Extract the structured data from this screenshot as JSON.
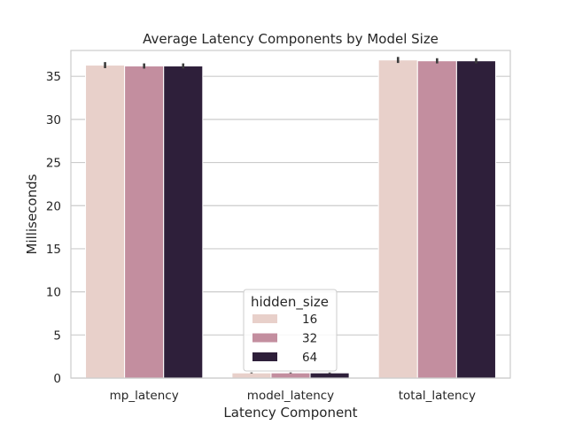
{
  "chart_data": {
    "type": "bar",
    "title": "Average Latency Components by Model Size",
    "xlabel": "Latency Component",
    "ylabel": "Milliseconds",
    "categories": [
      "mp_latency",
      "model_latency",
      "total_latency"
    ],
    "ylim": [
      0,
      38
    ],
    "yticks": [
      0,
      5,
      10,
      15,
      20,
      25,
      30,
      35
    ],
    "grid": true,
    "legend": {
      "title": "hidden_size",
      "placement": "lower-center"
    },
    "series": [
      {
        "name": "16",
        "color": "#e8d0ca",
        "values": [
          36.3,
          0.6,
          36.9
        ],
        "error": [
          0.35,
          0.05,
          0.35
        ]
      },
      {
        "name": "32",
        "color": "#c38e9f",
        "values": [
          36.2,
          0.6,
          36.8
        ],
        "error": [
          0.3,
          0.05,
          0.3
        ]
      },
      {
        "name": "64",
        "color": "#2e1f3a",
        "values": [
          36.2,
          0.6,
          36.8
        ],
        "error": [
          0.3,
          0.05,
          0.3
        ]
      }
    ]
  }
}
